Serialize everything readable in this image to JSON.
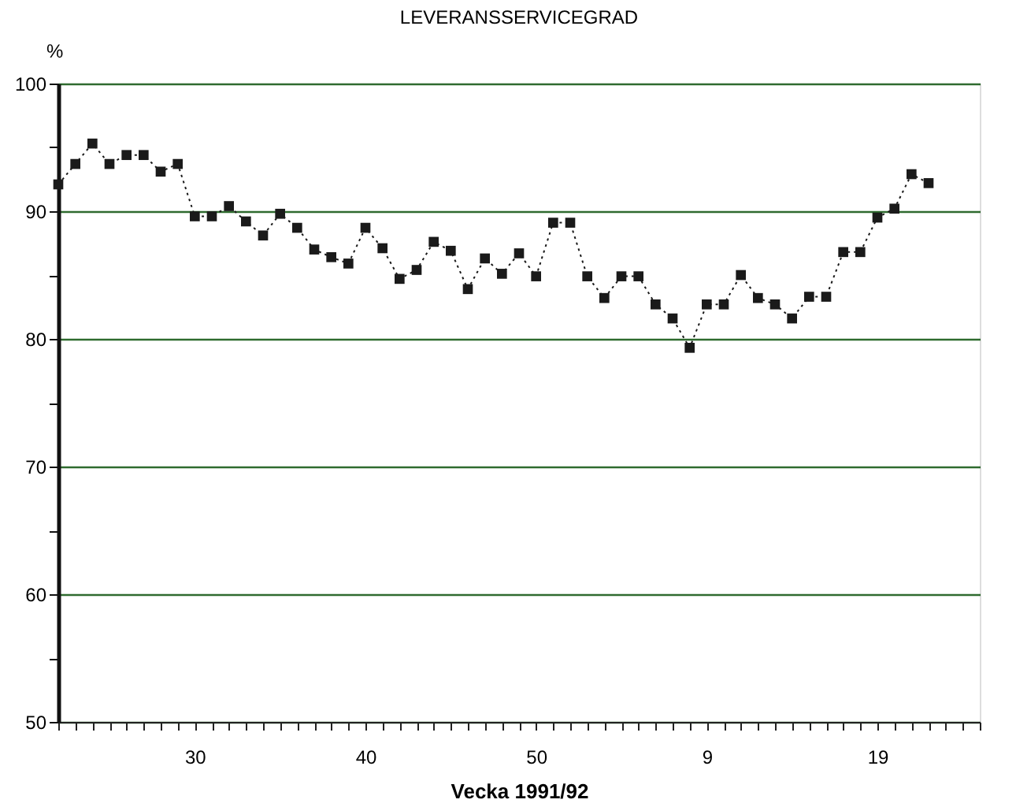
{
  "chart_data": {
    "type": "line",
    "title": "LEVERANSSERVICEGRAD",
    "xlabel": "Vecka   1991/92",
    "ylabel": "%",
    "categories": [
      null,
      null,
      null,
      null,
      null,
      null,
      null,
      null,
      "30",
      null,
      null,
      null,
      null,
      null,
      null,
      null,
      null,
      null,
      "40",
      null,
      null,
      null,
      null,
      null,
      null,
      null,
      null,
      null,
      "50",
      null,
      null,
      null,
      null,
      null,
      null,
      null,
      null,
      null,
      "9",
      null,
      null,
      null,
      null,
      null,
      null,
      null,
      null,
      null,
      "19",
      null,
      null,
      null,
      null,
      null,
      null
    ],
    "series": [
      {
        "color": "#1a1a1a",
        "values": [
          92.1,
          93.7,
          95.3,
          93.7,
          94.4,
          94.4,
          93.1,
          93.7,
          89.6,
          89.6,
          90.4,
          89.2,
          88.1,
          89.8,
          88.7,
          87.0,
          86.4,
          85.9,
          88.7,
          87.1,
          84.7,
          85.4,
          87.6,
          86.9,
          83.9,
          86.3,
          85.1,
          86.7,
          84.9,
          89.1,
          89.1,
          84.9,
          83.2,
          84.9,
          84.9,
          82.7,
          81.6,
          79.3,
          82.7,
          82.7,
          85.0,
          83.2,
          82.7,
          81.6,
          83.3,
          83.3,
          86.8,
          86.8,
          89.5,
          90.2,
          92.9,
          92.2,
          null,
          null,
          null
        ]
      }
    ],
    "ylim": [
      50,
      100
    ],
    "yticks": [
      50,
      {
        "value": 55,
        "label": null
      },
      60,
      {
        "value": 65,
        "label": null
      },
      70,
      {
        "value": 75,
        "label": null
      },
      80,
      {
        "value": 85,
        "label": null
      },
      90,
      {
        "value": 95,
        "label": null
      },
      100
    ],
    "grid": "y",
    "marker": "square",
    "line_style": "dotted"
  }
}
